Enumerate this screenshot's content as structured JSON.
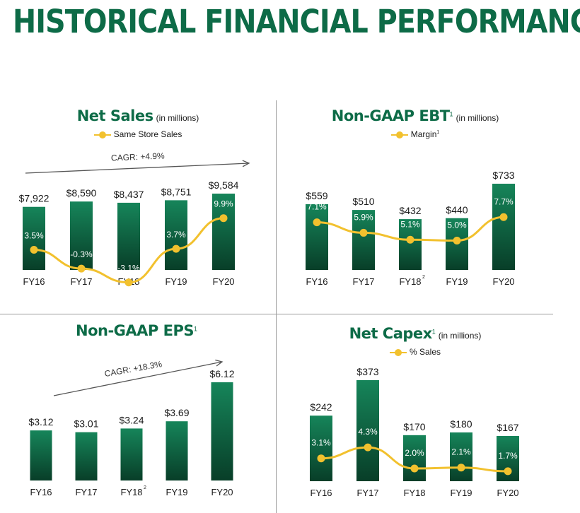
{
  "page": {
    "title": "HISTORICAL FINANCIAL PERFORMANCE"
  },
  "colors": {
    "bar_top": "#16855a",
    "bar_bottom": "#083e28",
    "line": "#f2c12e",
    "title": "#0d6b47"
  },
  "chart_data": [
    {
      "type": "bar",
      "title": "Net Sales",
      "title_sup": "",
      "unit": "(in millions)",
      "legend": {
        "label": "Same Store Sales",
        "sup": ""
      },
      "categories": [
        "FY16",
        "FY17",
        "FY18",
        "FY19",
        "FY20"
      ],
      "category_sups": [
        "",
        "",
        "",
        "",
        ""
      ],
      "value_labels": [
        "$7,922",
        "$8,590",
        "$8,437",
        "$8,751",
        "$9,584"
      ],
      "series": [
        {
          "name": "Net Sales",
          "values": [
            7922,
            8590,
            8437,
            8751,
            9584
          ]
        },
        {
          "name": "Same Store Sales",
          "type": "line",
          "values": [
            3.5,
            -0.3,
            -3.1,
            3.7,
            9.9
          ],
          "labels": [
            "3.5%",
            "-0.3%",
            "-3.1%",
            "3.7%",
            "9.9%"
          ]
        }
      ],
      "annotation": "CAGR: +4.9%"
    },
    {
      "type": "bar",
      "title": "Non-GAAP EBT",
      "title_sup": "1",
      "unit": "(in millions)",
      "legend": {
        "label": "Margin",
        "sup": "1"
      },
      "categories": [
        "FY16",
        "FY17",
        "FY18",
        "FY19",
        "FY20"
      ],
      "category_sups": [
        "",
        "",
        "2",
        "",
        ""
      ],
      "value_labels": [
        "$559",
        "$510",
        "$432",
        "$440",
        "$733"
      ],
      "series": [
        {
          "name": "Non-GAAP EBT",
          "values": [
            559,
            510,
            432,
            440,
            733
          ]
        },
        {
          "name": "Margin",
          "type": "line",
          "values": [
            7.1,
            5.9,
            5.1,
            5.0,
            7.7
          ],
          "labels": [
            "7.1%",
            "5.9%",
            "5.1%",
            "5.0%",
            "7.7%"
          ]
        }
      ],
      "annotation": ""
    },
    {
      "type": "bar",
      "title": "Non-GAAP EPS",
      "title_sup": "1",
      "unit": "",
      "legend": null,
      "categories": [
        "FY16",
        "FY17",
        "FY18",
        "FY19",
        "FY20"
      ],
      "category_sups": [
        "",
        "",
        "2",
        "",
        ""
      ],
      "value_labels": [
        "$3.12",
        "$3.01",
        "$3.24",
        "$3.69",
        "$6.12"
      ],
      "series": [
        {
          "name": "Non-GAAP EPS",
          "values": [
            3.12,
            3.01,
            3.24,
            3.69,
            6.12
          ]
        }
      ],
      "annotation": "CAGR: +18.3%"
    },
    {
      "type": "bar",
      "title": "Net Capex",
      "title_sup": "1",
      "unit": "(in millions)",
      "legend": {
        "label": "% Sales",
        "sup": ""
      },
      "categories": [
        "FY16",
        "FY17",
        "FY18",
        "FY19",
        "FY20"
      ],
      "category_sups": [
        "",
        "",
        "",
        "",
        ""
      ],
      "value_labels": [
        "$242",
        "$373",
        "$170",
        "$180",
        "$167"
      ],
      "series": [
        {
          "name": "Net Capex",
          "values": [
            242,
            373,
            170,
            180,
            167
          ]
        },
        {
          "name": "% Sales",
          "type": "line",
          "values": [
            3.1,
            4.3,
            2.0,
            2.1,
            1.7
          ],
          "labels": [
            "3.1%",
            "4.3%",
            "2.0%",
            "2.1%",
            "1.7%"
          ]
        }
      ],
      "annotation": ""
    }
  ]
}
